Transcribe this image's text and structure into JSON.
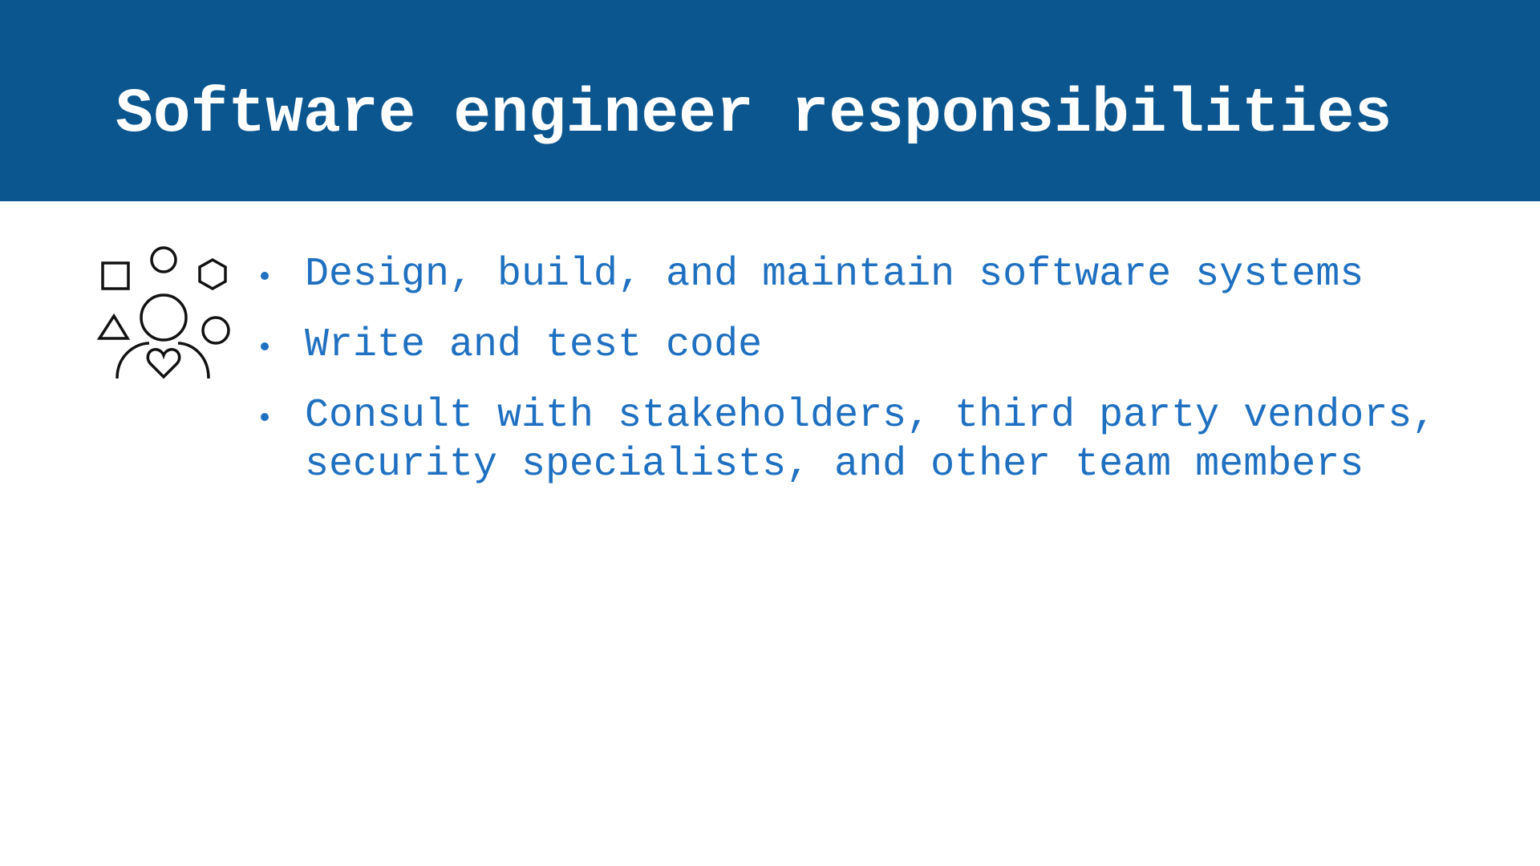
{
  "header": {
    "title": "Software engineer responsibilities"
  },
  "bullets": [
    "Design, build, and maintain software systems",
    "Write and test code",
    "Consult with stakeholders, third party vendors, security specialists, and other team members"
  ]
}
